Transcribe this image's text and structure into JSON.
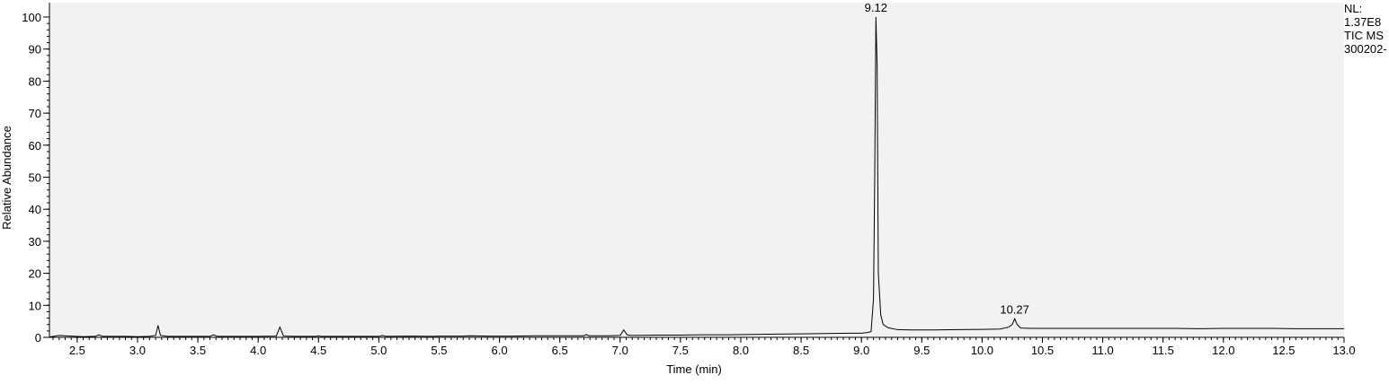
{
  "chart_data": {
    "type": "line",
    "title": "",
    "xlabel": "Time (min)",
    "ylabel": "Relative Abundance",
    "xlim": [
      2.27,
      13.0
    ],
    "ylim": [
      0,
      100
    ],
    "x_ticks": [
      2.5,
      3.0,
      3.5,
      4.0,
      4.5,
      5.0,
      5.5,
      6.0,
      6.5,
      7.0,
      7.5,
      8.0,
      8.5,
      9.0,
      9.5,
      10.0,
      10.5,
      11.0,
      11.5,
      12.0,
      12.5,
      13.0
    ],
    "y_ticks": [
      0,
      10,
      20,
      30,
      40,
      50,
      60,
      70,
      80,
      90,
      100
    ],
    "grid": false,
    "legend": "none",
    "series": [
      {
        "x": [
          2.27,
          2.35,
          2.45,
          2.55,
          2.65,
          2.68,
          2.71,
          2.8,
          2.9,
          3.0,
          3.1,
          3.15,
          3.17,
          3.19,
          3.25,
          3.4,
          3.6,
          3.63,
          3.66,
          3.8,
          4.0,
          4.15,
          4.18,
          4.21,
          4.3,
          4.48,
          4.5,
          4.52,
          4.7,
          4.9,
          5.0,
          5.03,
          5.06,
          5.25,
          5.45,
          5.5,
          5.7,
          5.75,
          5.9,
          6.1,
          6.3,
          6.5,
          6.7,
          6.72,
          6.74,
          6.9,
          7.0,
          7.03,
          7.06,
          7.1,
          7.3,
          7.5,
          7.7,
          7.9,
          8.1,
          8.3,
          8.5,
          8.7,
          8.9,
          9.0,
          9.05,
          9.08,
          9.1,
          9.11,
          9.12,
          9.13,
          9.14,
          9.16,
          9.18,
          9.22,
          9.3,
          9.4,
          9.6,
          9.8,
          10.0,
          10.15,
          10.22,
          10.25,
          10.27,
          10.29,
          10.32,
          10.4,
          10.6,
          10.8,
          11.0,
          11.2,
          11.4,
          11.6,
          11.8,
          12.0,
          12.2,
          12.4,
          12.6,
          12.8,
          13.0
        ],
        "y": [
          0.1,
          0.6,
          0.4,
          0.2,
          0.3,
          0.8,
          0.3,
          0.3,
          0.3,
          0.2,
          0.3,
          0.6,
          3.7,
          0.6,
          0.3,
          0.3,
          0.3,
          0.8,
          0.3,
          0.3,
          0.3,
          0.4,
          3.2,
          0.4,
          0.3,
          0.3,
          0.5,
          0.3,
          0.3,
          0.3,
          0.3,
          0.6,
          0.3,
          0.4,
          0.3,
          0.4,
          0.4,
          0.5,
          0.4,
          0.4,
          0.5,
          0.5,
          0.5,
          0.9,
          0.5,
          0.5,
          0.6,
          2.3,
          0.7,
          0.6,
          0.7,
          0.7,
          0.8,
          0.8,
          0.9,
          1.0,
          1.1,
          1.2,
          1.3,
          1.3,
          1.5,
          1.8,
          12.0,
          50.0,
          100.0,
          85.0,
          20.0,
          7.0,
          4.0,
          3.0,
          2.4,
          2.3,
          2.3,
          2.4,
          2.5,
          2.6,
          3.2,
          4.0,
          5.8,
          4.0,
          2.9,
          2.8,
          2.8,
          2.8,
          2.8,
          2.8,
          2.8,
          2.8,
          2.7,
          2.8,
          2.8,
          2.8,
          2.7,
          2.7,
          2.7
        ]
      }
    ],
    "peak_labels": [
      {
        "x": 9.12,
        "y": 100,
        "text": "9.12"
      },
      {
        "x": 10.27,
        "y": 5.8,
        "text": "10.27"
      }
    ]
  },
  "info": {
    "nl_label": "NL:",
    "nl_value": "1.37E8",
    "scan_label": "TIC  MS",
    "file_name": "300202-"
  }
}
